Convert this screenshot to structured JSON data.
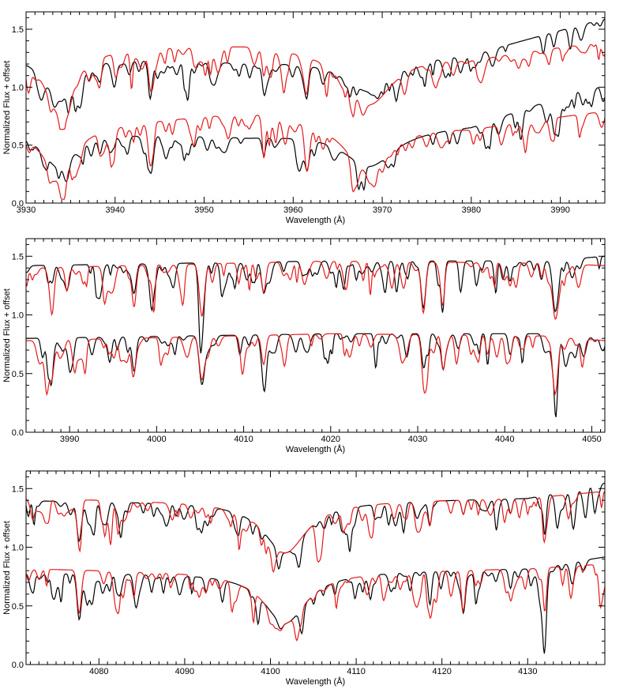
{
  "chart_data": [
    {
      "type": "line",
      "xlabel": "Wavelength (Å)",
      "ylabel": "Normalized Flux + offset",
      "xlim": [
        3930,
        3995
      ],
      "ylim": [
        0.0,
        1.65
      ],
      "xticks": [
        "3930",
        "3940",
        "3950",
        "3960",
        "3970",
        "3980",
        "3990"
      ],
      "yticks": [
        "0.0",
        "0.5",
        "1.0",
        "1.5"
      ],
      "colors": {
        "observed": "#000000",
        "model": "#e41a1c"
      },
      "series": [
        {
          "color": "#000000",
          "profile": "ca",
          "offset": 0.6,
          "continuum": [
            [
              3930,
              0.68
            ],
            [
              3955,
              0.62
            ],
            [
              3980,
              0.7
            ],
            [
              3995,
              1.0
            ]
          ],
          "lines": [
            [
              3933.7,
              0.5,
              2.2
            ],
            [
              3968.5,
              0.45,
              3.5
            ],
            [
              3944.0,
              0.35,
              0.25
            ],
            [
              3961.5,
              0.3,
              0.25
            ],
            [
              3956.7,
              0.25,
              0.2
            ],
            [
              3938.3,
              0.2,
              0.2
            ],
            [
              3948.9,
              0.15,
              0.2
            ],
            [
              3981.0,
              0.1,
              0.2
            ]
          ],
          "seed": 11
        },
        {
          "color": "#e41a1c",
          "profile": "ca",
          "offset": 0.6,
          "continuum": [
            [
              3930,
              0.72
            ],
            [
              3955,
              0.78
            ],
            [
              3980,
              0.66
            ],
            [
              3995,
              0.8
            ]
          ],
          "lines": [
            [
              3933.7,
              0.75,
              2.0
            ],
            [
              3968.5,
              0.65,
              3.3
            ],
            [
              3944.0,
              0.45,
              0.25
            ],
            [
              3961.5,
              0.4,
              0.25
            ],
            [
              3956.7,
              0.3,
              0.2
            ],
            [
              3938.3,
              0.25,
              0.2
            ],
            [
              3948.9,
              0.2,
              0.2
            ],
            [
              3981.0,
              0.15,
              0.2
            ]
          ],
          "seed": 12
        },
        {
          "color": "#000000",
          "profile": "ca",
          "offset": 0.0,
          "continuum": [
            [
              3930,
              0.62
            ],
            [
              3955,
              0.58
            ],
            [
              3980,
              0.68
            ],
            [
              3995,
              1.05
            ]
          ],
          "lines": [
            [
              3933.7,
              0.5,
              2.2
            ],
            [
              3968.5,
              0.5,
              3.5
            ],
            [
              3944.0,
              0.35,
              0.25
            ],
            [
              3961.5,
              0.3,
              0.25
            ],
            [
              3956.7,
              0.25,
              0.2
            ],
            [
              3938.3,
              0.2,
              0.2
            ],
            [
              3948.9,
              0.15,
              0.2
            ],
            [
              3981.0,
              0.1,
              0.2
            ]
          ],
          "seed": 13
        },
        {
          "color": "#e41a1c",
          "profile": "ca",
          "offset": 0.0,
          "continuum": [
            [
              3930,
              0.62
            ],
            [
              3955,
              0.8
            ],
            [
              3980,
              0.66
            ],
            [
              3995,
              0.8
            ]
          ],
          "lines": [
            [
              3933.7,
              0.66,
              2.0
            ],
            [
              3968.5,
              0.62,
              3.3
            ],
            [
              3944.0,
              0.45,
              0.25
            ],
            [
              3961.5,
              0.4,
              0.25
            ],
            [
              3956.7,
              0.3,
              0.2
            ],
            [
              3938.3,
              0.25,
              0.2
            ],
            [
              3948.9,
              0.2,
              0.2
            ],
            [
              3981.0,
              0.15,
              0.2
            ]
          ],
          "seed": 14
        }
      ]
    },
    {
      "type": "line",
      "xlabel": "Wavelength (Å)",
      "ylabel": "Normalized Flux + offset",
      "xlim": [
        3985,
        4051.5
      ],
      "ylim": [
        0.0,
        1.65
      ],
      "xticks": [
        "3990",
        "4000",
        "4010",
        "4020",
        "4030",
        "4040",
        "4050"
      ],
      "yticks": [
        "0.0",
        "0.5",
        "1.0",
        "1.5"
      ],
      "colors": {
        "observed": "#000000",
        "model": "#e41a1c"
      },
      "series": [
        {
          "color": "#000000",
          "profile": "lines",
          "offset": 0.6,
          "continuum": [
            [
              3985,
              0.82
            ],
            [
              4020,
              0.86
            ],
            [
              4045,
              0.86
            ],
            [
              4051.5,
              0.9
            ]
          ],
          "lines": [
            [
              4005.2,
              0.55,
              0.3
            ],
            [
              4045.8,
              0.5,
              0.3
            ],
            [
              3997.4,
              0.3,
              0.25
            ],
            [
              4012.3,
              0.3,
              0.25
            ],
            [
              4030.7,
              0.35,
              0.25
            ],
            [
              4032.9,
              0.3,
              0.2
            ],
            [
              4040.6,
              0.2,
              0.2
            ],
            [
              3988.0,
              0.15,
              0.2
            ]
          ],
          "seed": 21
        },
        {
          "color": "#e41a1c",
          "profile": "lines",
          "offset": 0.6,
          "continuum": [
            [
              3985,
              0.8
            ],
            [
              4020,
              0.86
            ],
            [
              4045,
              0.84
            ],
            [
              4051.5,
              0.82
            ]
          ],
          "lines": [
            [
              4005.2,
              0.5,
              0.3
            ],
            [
              4045.8,
              0.55,
              0.3
            ],
            [
              3997.4,
              0.35,
              0.25
            ],
            [
              4012.3,
              0.3,
              0.25
            ],
            [
              4030.7,
              0.4,
              0.25
            ],
            [
              4032.9,
              0.3,
              0.2
            ],
            [
              4040.6,
              0.22,
              0.2
            ],
            [
              3988.0,
              0.18,
              0.2
            ]
          ],
          "seed": 22
        },
        {
          "color": "#000000",
          "profile": "lines",
          "offset": 0.0,
          "continuum": [
            [
              3985,
              0.8
            ],
            [
              4020,
              0.84
            ],
            [
              4045,
              0.84
            ],
            [
              4051.5,
              0.8
            ]
          ],
          "lines": [
            [
              4005.2,
              0.5,
              0.3
            ],
            [
              4045.8,
              0.52,
              0.3
            ],
            [
              3997.4,
              0.3,
              0.25
            ],
            [
              4012.3,
              0.3,
              0.25
            ],
            [
              4030.7,
              0.35,
              0.25
            ],
            [
              4032.9,
              0.3,
              0.2
            ],
            [
              4040.6,
              0.2,
              0.2
            ],
            [
              3988.0,
              0.15,
              0.2
            ]
          ],
          "seed": 23
        },
        {
          "color": "#e41a1c",
          "profile": "lines",
          "offset": 0.0,
          "continuum": [
            [
              3985,
              0.78
            ],
            [
              4020,
              0.84
            ],
            [
              4045,
              0.82
            ],
            [
              4051.5,
              0.78
            ]
          ],
          "lines": [
            [
              4005.2,
              0.45,
              0.3
            ],
            [
              4045.8,
              0.6,
              0.3
            ],
            [
              3997.4,
              0.35,
              0.25
            ],
            [
              4012.3,
              0.3,
              0.25
            ],
            [
              4030.7,
              0.4,
              0.25
            ],
            [
              4032.9,
              0.3,
              0.2
            ],
            [
              4040.6,
              0.22,
              0.2
            ],
            [
              3988.0,
              0.18,
              0.2
            ]
          ],
          "seed": 24
        }
      ]
    },
    {
      "type": "line",
      "xlabel": "Wavelength (Å)",
      "ylabel": "Normalized Flux + offset",
      "xlim": [
        4071.5,
        4139
      ],
      "ylim": [
        0.0,
        1.65
      ],
      "xticks": [
        "4080",
        "4090",
        "4100",
        "4110",
        "4120",
        "4130"
      ],
      "yticks": [
        "0.0",
        "0.5",
        "1.0",
        "1.5"
      ],
      "colors": {
        "observed": "#000000",
        "model": "#e41a1c"
      },
      "series": [
        {
          "color": "#000000",
          "profile": "hd",
          "offset": 0.6,
          "continuum": [
            [
              4071.5,
              0.8
            ],
            [
              4100,
              0.78
            ],
            [
              4130,
              0.82
            ],
            [
              4139,
              0.95
            ]
          ],
          "lines": [
            [
              4101.7,
              0.55,
              3.0
            ],
            [
              4077.7,
              0.35,
              0.25
            ],
            [
              4118.6,
              0.25,
              0.2
            ],
            [
              4132.0,
              0.3,
              0.2
            ],
            [
              4128.0,
              0.15,
              0.2
            ],
            [
              4122.5,
              0.15,
              0.2
            ],
            [
              4092.5,
              0.12,
              0.2
            ]
          ],
          "seed": 31
        },
        {
          "color": "#e41a1c",
          "profile": "hd",
          "offset": 0.6,
          "continuum": [
            [
              4071.5,
              0.82
            ],
            [
              4100,
              0.78
            ],
            [
              4130,
              0.82
            ],
            [
              4139,
              0.88
            ]
          ],
          "lines": [
            [
              4101.7,
              0.55,
              3.0
            ],
            [
              4077.7,
              0.32,
              0.25
            ],
            [
              4118.6,
              0.25,
              0.2
            ],
            [
              4132.0,
              0.3,
              0.2
            ],
            [
              4128.0,
              0.15,
              0.2
            ],
            [
              4122.5,
              0.15,
              0.2
            ],
            [
              4092.5,
              0.12,
              0.2
            ]
          ],
          "seed": 32
        },
        {
          "color": "#000000",
          "profile": "hd",
          "offset": 0.0,
          "continuum": [
            [
              4071.5,
              0.78
            ],
            [
              4100,
              0.78
            ],
            [
              4130,
              0.82
            ],
            [
              4139,
              0.92
            ]
          ],
          "lines": [
            [
              4101.7,
              0.55,
              3.0
            ],
            [
              4077.7,
              0.5,
              0.25
            ],
            [
              4118.6,
              0.35,
              0.2
            ],
            [
              4132.0,
              0.45,
              0.2
            ],
            [
              4128.0,
              0.2,
              0.2
            ],
            [
              4122.5,
              0.25,
              0.2
            ],
            [
              4092.5,
              0.15,
              0.2
            ]
          ],
          "seed": 33
        },
        {
          "color": "#e41a1c",
          "profile": "hd",
          "offset": 0.0,
          "continuum": [
            [
              4071.5,
              0.82
            ],
            [
              4100,
              0.78
            ],
            [
              4130,
              0.82
            ],
            [
              4139,
              0.86
            ]
          ],
          "lines": [
            [
              4101.7,
              0.55,
              3.0
            ],
            [
              4077.7,
              0.45,
              0.25
            ],
            [
              4118.6,
              0.35,
              0.2
            ],
            [
              4132.0,
              0.45,
              0.2
            ],
            [
              4128.0,
              0.2,
              0.2
            ],
            [
              4122.5,
              0.25,
              0.2
            ],
            [
              4092.5,
              0.15,
              0.2
            ]
          ],
          "seed": 34
        }
      ]
    }
  ]
}
